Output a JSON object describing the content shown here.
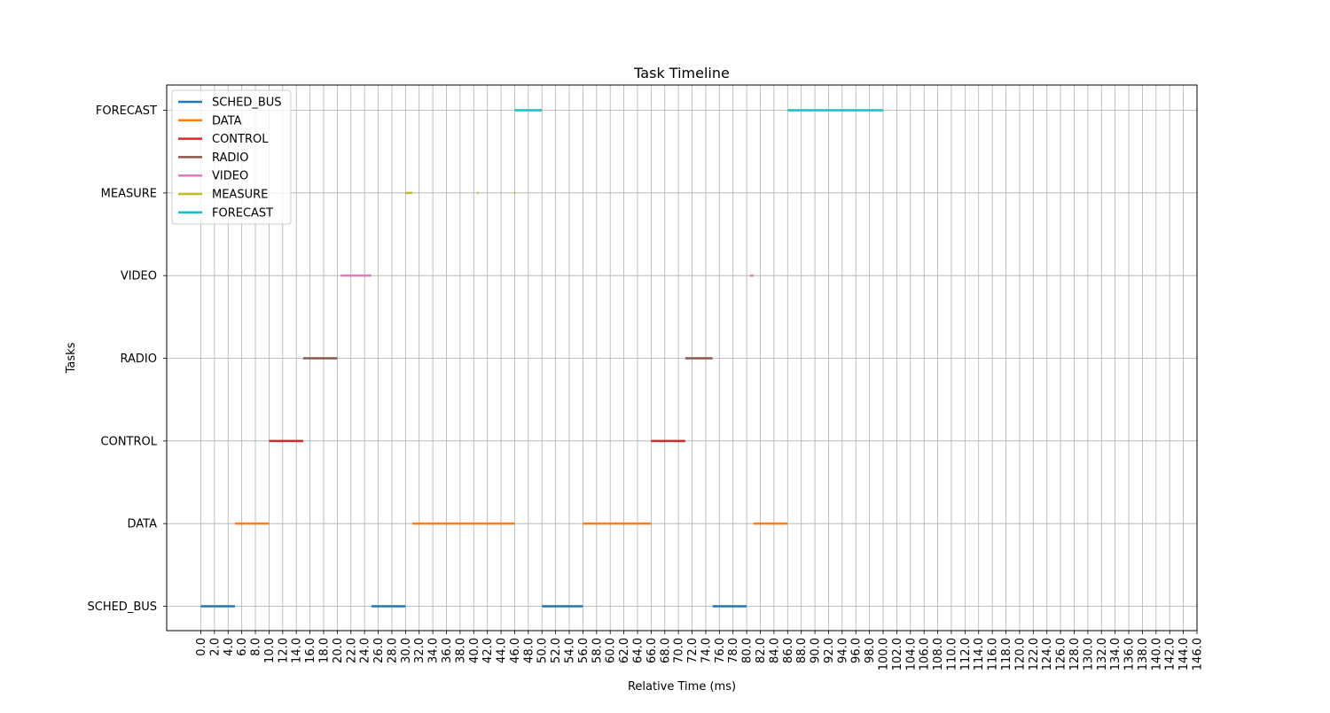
{
  "chart_data": {
    "type": "timeline",
    "title": "Task Timeline",
    "xlabel": "Relative Time (ms)",
    "ylabel": "Tasks",
    "xlim": [
      -5,
      146
    ],
    "x_tick_step": 2,
    "x_tick_max": 146,
    "grid": true,
    "legend_position": "top-left",
    "tasks": [
      "SCHED_BUS",
      "DATA",
      "CONTROL",
      "RADIO",
      "VIDEO",
      "MEASURE",
      "FORECAST"
    ],
    "series": [
      {
        "name": "SCHED_BUS",
        "color": "#1f77b4",
        "intervals": [
          [
            0.0,
            5.0
          ],
          [
            25.0,
            30.0
          ],
          [
            50.0,
            56.0
          ],
          [
            75.0,
            80.0
          ]
        ]
      },
      {
        "name": "DATA",
        "color": "#ff7f0e",
        "intervals": [
          [
            5.0,
            10.0
          ],
          [
            31.0,
            46.0
          ],
          [
            56.0,
            66.0
          ],
          [
            81.0,
            86.0
          ]
        ]
      },
      {
        "name": "CONTROL",
        "color": "#d62728",
        "intervals": [
          [
            10.0,
            15.0
          ],
          [
            66.0,
            71.0
          ]
        ]
      },
      {
        "name": "RADIO",
        "color": "#8c564b",
        "intervals": [
          [
            15.0,
            20.0
          ],
          [
            71.0,
            75.0
          ]
        ]
      },
      {
        "name": "VIDEO",
        "color": "#e377c2",
        "intervals": [
          [
            20.5,
            25.0
          ],
          [
            80.5,
            81.0
          ]
        ]
      },
      {
        "name": "MEASURE",
        "color": "#bcbd22",
        "intervals": [
          [
            30.0,
            31.0
          ],
          [
            40.5,
            40.7
          ],
          [
            45.9,
            46.1
          ]
        ]
      },
      {
        "name": "FORECAST",
        "color": "#17becf",
        "intervals": [
          [
            46.0,
            50.0
          ],
          [
            86.0,
            100.0
          ]
        ]
      }
    ]
  }
}
